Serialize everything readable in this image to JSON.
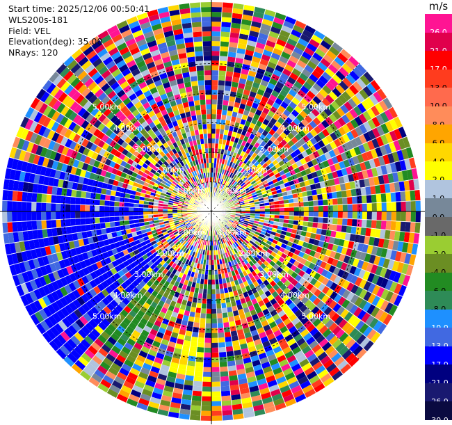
{
  "info": {
    "start_time": "Start time: 2025/12/06 00:50:41",
    "instrument": "WLS200s-181",
    "field": "Field: VEL",
    "elevation": "Elevation(deg): 35.00",
    "nrays": "NRays: 120"
  },
  "rings": [
    {
      "label": "1.00km",
      "km": 1
    },
    {
      "label": "2.00km",
      "km": 2
    },
    {
      "label": "3.00km",
      "km": 3
    },
    {
      "label": "4.00km",
      "km": 4
    },
    {
      "label": "5.00km",
      "km": 5
    }
  ],
  "colorbar": {
    "unit": "m/s",
    "bins": [
      {
        "label": "26.0",
        "color": "#ff1493"
      },
      {
        "label": "21.0",
        "color": "#e0004c"
      },
      {
        "label": "17.0",
        "color": "#ff0000"
      },
      {
        "label": "13.0",
        "color": "#ff3c1e"
      },
      {
        "label": "10.0",
        "color": "#ff6a4d"
      },
      {
        "label": "8.0",
        "color": "#ff8c5a"
      },
      {
        "label": "6.0",
        "color": "#ffa500"
      },
      {
        "label": "4.0",
        "color": "#ffd700"
      },
      {
        "label": "2.0",
        "color": "#ffff00"
      },
      {
        "label": "1.0",
        "color": "#b0c4de"
      },
      {
        "label": "0.0",
        "color": "#778899"
      },
      {
        "label": "-1.0",
        "color": "#696969"
      },
      {
        "label": "-2.0",
        "color": "#9acd32"
      },
      {
        "label": "-4.0",
        "color": "#6b8e23"
      },
      {
        "label": "-6.0",
        "color": "#228b22"
      },
      {
        "label": "-8.0",
        "color": "#2e8b57"
      },
      {
        "label": "-10.0",
        "color": "#1e90ff"
      },
      {
        "label": "-13.0",
        "color": "#4169e1"
      },
      {
        "label": "-17.0",
        "color": "#0000ff"
      },
      {
        "label": "-21.0",
        "color": "#000080"
      },
      {
        "label": "-26.0",
        "color": "#191970"
      },
      {
        "label": "-30.0",
        "color": "#0a0a40"
      }
    ]
  }
}
